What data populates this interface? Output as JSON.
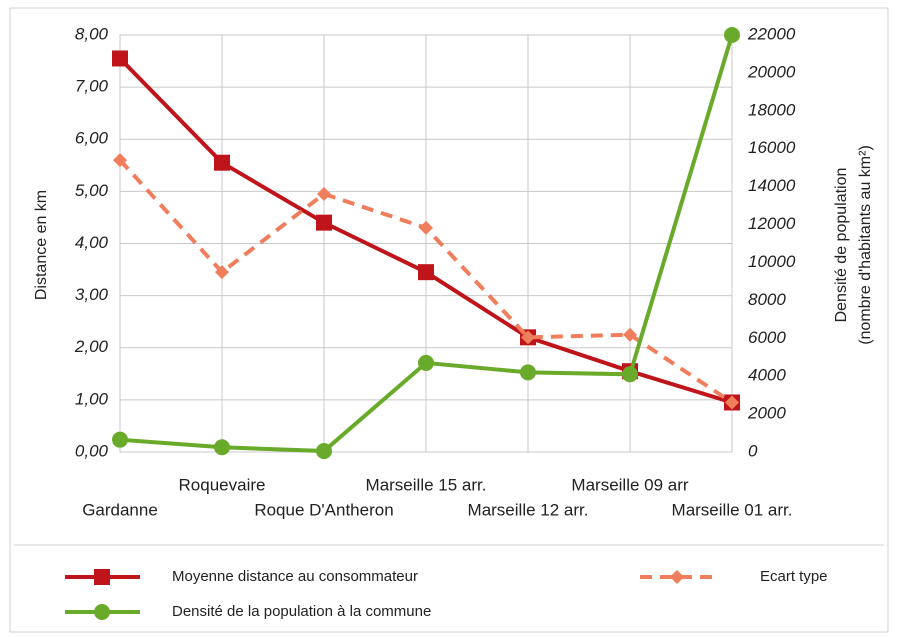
{
  "chart_data": {
    "type": "line",
    "categories": [
      "Gardanne",
      "Roquevaire",
      "Roque D'Antheron",
      "Marseille 15 arr.",
      "Marseille 12 arr.",
      "Marseille 09 arr",
      "Marseille 01 arr."
    ],
    "ylabel": "Distance en km",
    "y2label": [
      "Densité de population",
      "(nombre d'habitants au km²)"
    ],
    "ylim": [
      0,
      8
    ],
    "yticks": [
      {
        "value": 0,
        "label": "0,00"
      },
      {
        "value": 1,
        "label": "1,00"
      },
      {
        "value": 2,
        "label": "2,00"
      },
      {
        "value": 3,
        "label": "3,00"
      },
      {
        "value": 4,
        "label": "4,00"
      },
      {
        "value": 5,
        "label": "5,00"
      },
      {
        "value": 6,
        "label": "6,00"
      },
      {
        "value": 7,
        "label": "7,00"
      },
      {
        "value": 8,
        "label": "8,00"
      }
    ],
    "y2lim": [
      0,
      22000
    ],
    "y2ticks": [
      0,
      2000,
      4000,
      6000,
      8000,
      10000,
      12000,
      14000,
      16000,
      18000,
      20000,
      22000
    ],
    "grid": true,
    "legend": "bottom",
    "series": [
      {
        "name": "Moyenne distance au consommateur",
        "color": "#c0141b",
        "marker": "square",
        "dash": false,
        "values": [
          7.55,
          5.55,
          4.4,
          3.45,
          2.2,
          1.55,
          0.95
        ]
      },
      {
        "name": "Ecart type",
        "color": "#f07e5c",
        "marker": "diamond",
        "dash": true,
        "values": [
          5.6,
          3.45,
          4.95,
          4.3,
          2.2,
          2.25,
          0.95
        ]
      },
      {
        "name": "Densité de la population à la commune",
        "color": "#6aaa2a",
        "marker": "circle",
        "dash": false,
        "axis": "y2",
        "values": [
          650,
          250,
          50,
          4700,
          4200,
          4100,
          22000
        ]
      }
    ]
  }
}
